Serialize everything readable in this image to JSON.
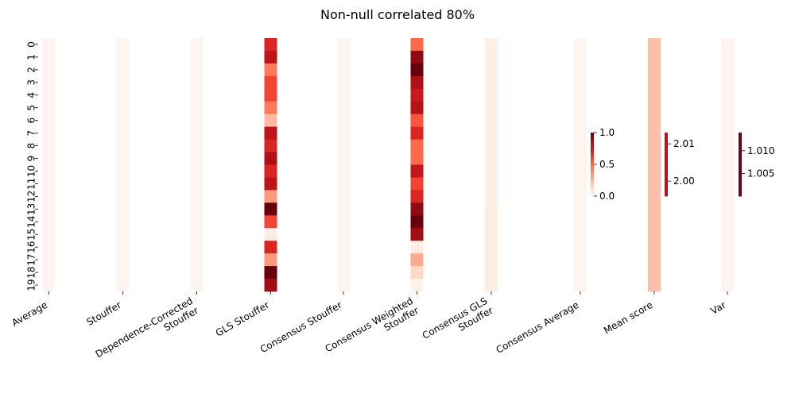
{
  "chart_data": {
    "type": "heatmap",
    "title": "Non-null correlated 80%",
    "row_labels": [
      "0",
      "1",
      "2",
      "3",
      "4",
      "5",
      "6",
      "7",
      "8",
      "9",
      "10",
      "11",
      "12",
      "13",
      "14",
      "15",
      "16",
      "17",
      "18",
      "19"
    ],
    "colormap": "Reds",
    "panels": [
      {
        "id": "methods",
        "columns": [
          "Average",
          "Stouffer",
          "Dependence-Corrected\nStouffer",
          "GLS Stouffer",
          "Consensus Stouffer",
          "Consensus Weighted\nStouffer",
          "Consensus GLS\nStouffer",
          "Consensus Average"
        ],
        "values": [
          [
            0.0,
            0.0,
            0.0,
            0.7,
            0.0,
            0.5,
            0.04,
            0.0
          ],
          [
            0.0,
            0.0,
            0.0,
            0.8,
            0.0,
            0.92,
            0.04,
            0.0
          ],
          [
            0.0,
            0.0,
            0.0,
            0.45,
            0.0,
            1.0,
            0.04,
            0.0
          ],
          [
            0.0,
            0.0,
            0.0,
            0.6,
            0.0,
            0.85,
            0.04,
            0.0
          ],
          [
            0.0,
            0.0,
            0.0,
            0.6,
            0.0,
            0.75,
            0.04,
            0.0
          ],
          [
            0.0,
            0.0,
            0.0,
            0.45,
            0.0,
            0.82,
            0.04,
            0.0
          ],
          [
            0.0,
            0.0,
            0.0,
            0.25,
            0.0,
            0.55,
            0.04,
            0.0
          ],
          [
            0.0,
            0.0,
            0.0,
            0.8,
            0.0,
            0.7,
            0.04,
            0.0
          ],
          [
            0.0,
            0.0,
            0.0,
            0.7,
            0.0,
            0.5,
            0.04,
            0.0
          ],
          [
            0.0,
            0.0,
            0.0,
            0.85,
            0.0,
            0.5,
            0.04,
            0.0
          ],
          [
            0.0,
            0.0,
            0.0,
            0.7,
            0.0,
            0.78,
            0.04,
            0.0
          ],
          [
            0.0,
            0.0,
            0.0,
            0.8,
            0.0,
            0.6,
            0.04,
            0.0
          ],
          [
            0.0,
            0.0,
            0.0,
            0.35,
            0.0,
            0.7,
            0.04,
            0.0
          ],
          [
            0.0,
            0.0,
            0.0,
            1.0,
            0.0,
            0.92,
            0.05,
            0.0
          ],
          [
            0.0,
            0.0,
            0.0,
            0.6,
            0.0,
            1.0,
            0.05,
            0.0
          ],
          [
            0.0,
            0.0,
            0.0,
            0.05,
            0.0,
            0.88,
            0.05,
            0.0
          ],
          [
            0.0,
            0.0,
            0.0,
            0.7,
            0.0,
            0.05,
            0.05,
            0.0
          ],
          [
            0.0,
            0.0,
            0.0,
            0.35,
            0.0,
            0.3,
            0.05,
            0.0
          ],
          [
            0.0,
            0.0,
            0.0,
            1.0,
            0.0,
            0.15,
            0.05,
            0.0
          ],
          [
            0.0,
            0.0,
            0.0,
            0.88,
            0.0,
            0.02,
            0.05,
            0.0
          ]
        ],
        "colorbar": {
          "range": [
            0,
            1
          ],
          "ticks": [
            "0.0",
            "0.5",
            "1.0"
          ],
          "tick_values": [
            0.0,
            0.5,
            1.0
          ]
        }
      },
      {
        "id": "mean-score",
        "columns": [
          "Mean score"
        ],
        "values": [
          [
            2.0
          ],
          [
            2.0
          ],
          [
            2.0
          ],
          [
            2.0
          ],
          [
            2.0
          ],
          [
            2.0
          ],
          [
            2.0
          ],
          [
            2.0
          ],
          [
            2.0
          ],
          [
            2.0
          ],
          [
            2.0
          ],
          [
            2.0
          ],
          [
            2.0
          ],
          [
            2.0
          ],
          [
            2.0
          ],
          [
            2.0
          ],
          [
            2.0
          ],
          [
            2.0
          ],
          [
            2.0
          ],
          [
            2.0
          ]
        ],
        "colorbar": {
          "range": [
            1.996,
            2.013
          ],
          "ticks": [
            "2.00",
            "2.01"
          ],
          "tick_values": [
            2.0,
            2.01
          ]
        }
      },
      {
        "id": "var",
        "columns": [
          "Var"
        ],
        "values": [
          [
            1.0
          ],
          [
            1.0
          ],
          [
            1.0
          ],
          [
            1.0
          ],
          [
            1.0
          ],
          [
            1.0
          ],
          [
            1.0
          ],
          [
            1.0
          ],
          [
            1.0
          ],
          [
            1.0
          ],
          [
            1.0
          ],
          [
            1.0
          ],
          [
            1.0
          ],
          [
            1.0
          ],
          [
            1.0
          ],
          [
            1.0
          ],
          [
            1.0
          ],
          [
            1.0
          ],
          [
            1.0
          ],
          [
            1.0
          ]
        ],
        "colorbar": {
          "range": [
            1.0,
            1.014
          ],
          "ticks": [
            "1.005",
            "1.010"
          ],
          "tick_values": [
            1.005,
            1.01
          ]
        }
      }
    ]
  }
}
